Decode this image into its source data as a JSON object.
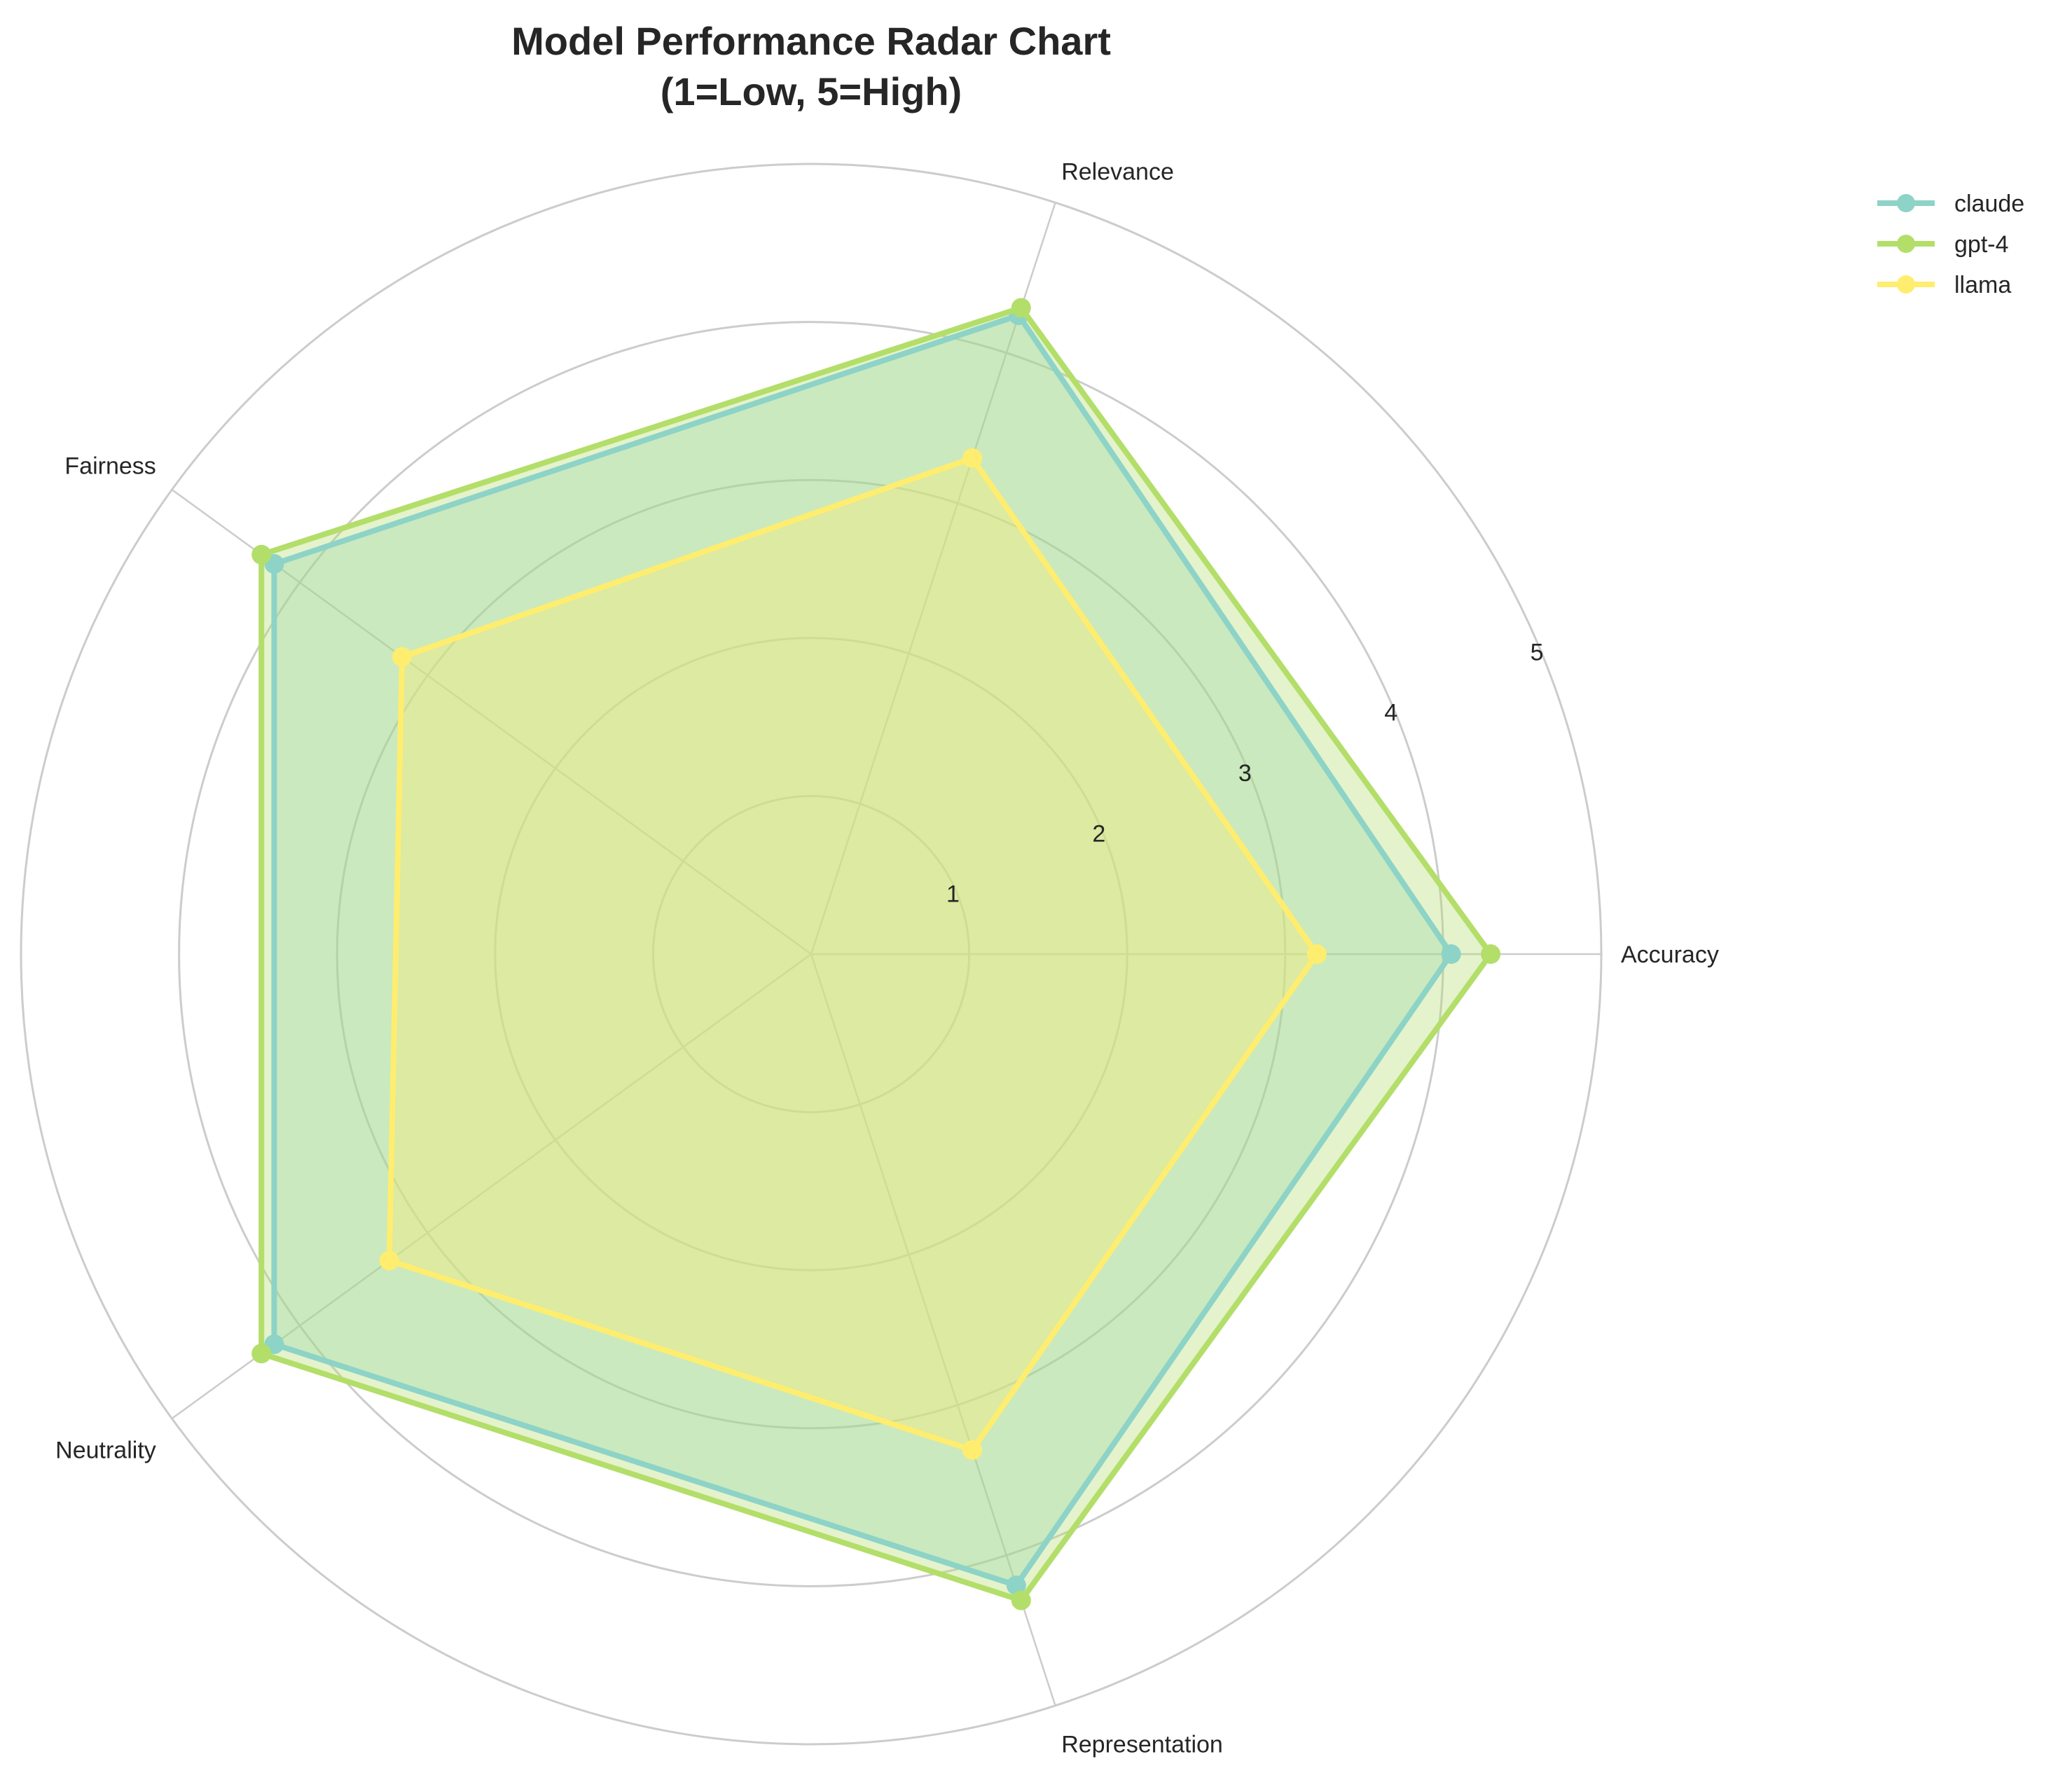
{
  "chart_data": {
    "type": "radar",
    "title_lines": [
      "Model Performance Radar Chart",
      "(1=Low, 5=High)"
    ],
    "axes": [
      "Accuracy",
      "Relevance",
      "Fairness",
      "Neutrality",
      "Representation"
    ],
    "r_ticks": [
      "1",
      "2",
      "3",
      "4",
      "5"
    ],
    "r_range": [
      0,
      5
    ],
    "grid": true,
    "legend_position": "upper-right",
    "series": [
      {
        "name": "claude",
        "values": [
          4.05,
          4.25,
          4.2,
          4.2,
          4.2
        ],
        "color": "#8dd3c7"
      },
      {
        "name": "gpt-4",
        "values": [
          4.3,
          4.3,
          4.3,
          4.3,
          4.3
        ],
        "color": "#b3de69"
      },
      {
        "name": "llama",
        "values": [
          3.2,
          3.3,
          3.2,
          3.3,
          3.3
        ],
        "color": "#ffed6f"
      }
    ]
  }
}
